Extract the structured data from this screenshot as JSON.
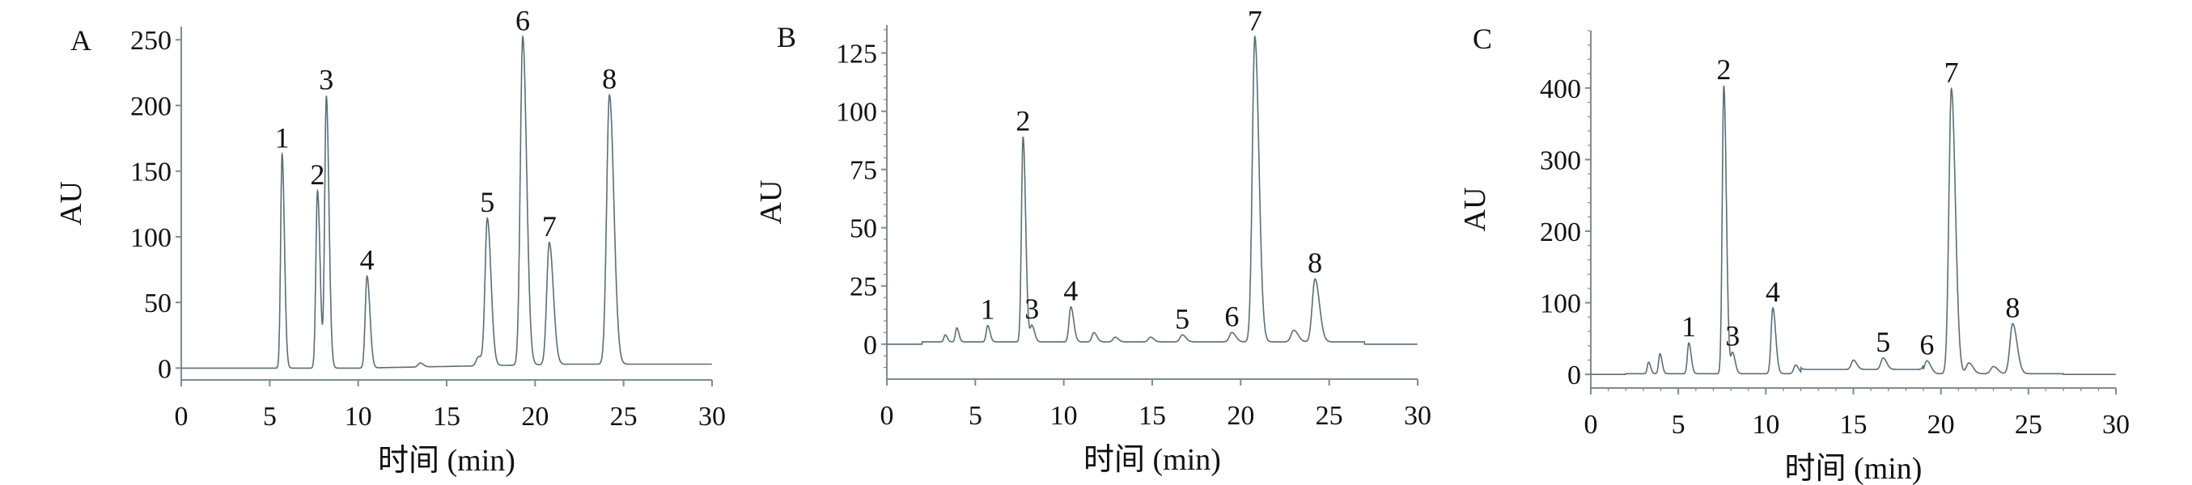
{
  "chart_data": [
    {
      "type": "line",
      "panel_label": "A",
      "xlabel": "时间 (min)",
      "ylabel": "AU",
      "xlim": [
        0,
        30
      ],
      "ylim": [
        -9,
        260
      ],
      "xticks": [
        "0",
        "5",
        "10",
        "15",
        "20",
        "25",
        "30"
      ],
      "yticks": [
        "0",
        "50",
        "100",
        "150",
        "200",
        "250"
      ],
      "line_color": "#5b6e77",
      "peaks": [
        {
          "label": "1",
          "x": 5.7,
          "y": 163
        },
        {
          "label": "2",
          "x": 7.7,
          "y": 135
        },
        {
          "label": "3",
          "x": 8.2,
          "y": 207
        },
        {
          "label": "4",
          "x": 10.5,
          "y": 70
        },
        {
          "label": "5",
          "x": 17.3,
          "y": 112
        },
        {
          "label": "6",
          "x": 19.3,
          "y": 250
        },
        {
          "label": "7",
          "x": 20.8,
          "y": 93
        },
        {
          "label": "8",
          "x": 24.2,
          "y": 205
        }
      ],
      "minor_peaks": [
        {
          "x": 13.5,
          "y": 3
        },
        {
          "x": 16.8,
          "y": 7
        }
      ]
    },
    {
      "type": "line",
      "panel_label": "B",
      "xlabel": "时间 (min)",
      "ylabel": "AU",
      "xlim": [
        0,
        30
      ],
      "ylim": [
        -15,
        137
      ],
      "xticks": [
        "0",
        "5",
        "10",
        "15",
        "20",
        "25",
        "30"
      ],
      "yticks": [
        "0",
        "25",
        "50",
        "75",
        "100",
        "125"
      ],
      "line_color": "#5b6e77",
      "peaks": [
        {
          "label": "1",
          "x": 5.7,
          "y": 7
        },
        {
          "label": "2",
          "x": 7.7,
          "y": 88
        },
        {
          "label": "3",
          "x": 8.2,
          "y": 7
        },
        {
          "label": "4",
          "x": 10.4,
          "y": 15
        },
        {
          "label": "5",
          "x": 16.7,
          "y": 3
        },
        {
          "label": "6",
          "x": 19.5,
          "y": 4
        },
        {
          "label": "7",
          "x": 20.8,
          "y": 131
        },
        {
          "label": "8",
          "x": 24.2,
          "y": 27
        }
      ],
      "minor_peaks": [
        {
          "x": 3.3,
          "y": 3
        },
        {
          "x": 3.95,
          "y": 6
        },
        {
          "x": 11.7,
          "y": 4
        },
        {
          "x": 12.9,
          "y": 2
        },
        {
          "x": 14.9,
          "y": 2
        },
        {
          "x": 23.0,
          "y": 5
        }
      ]
    },
    {
      "type": "line",
      "panel_label": "C",
      "xlabel": "时间 (min)",
      "ylabel": "AU",
      "xlim": [
        0,
        30
      ],
      "ylim": [
        -19,
        480
      ],
      "xticks": [
        "0",
        "5",
        "10",
        "15",
        "20",
        "25",
        "30"
      ],
      "yticks": [
        "0",
        "100",
        "200",
        "300",
        "400"
      ],
      "line_color": "#5b6e77",
      "peaks": [
        {
          "label": "1",
          "x": 5.6,
          "y": 43
        },
        {
          "label": "2",
          "x": 7.6,
          "y": 402
        },
        {
          "label": "3",
          "x": 8.1,
          "y": 29
        },
        {
          "label": "4",
          "x": 10.4,
          "y": 92
        },
        {
          "label": "5",
          "x": 16.7,
          "y": 16
        },
        {
          "label": "6",
          "x": 19.2,
          "y": 18
        },
        {
          "label": "7",
          "x": 20.6,
          "y": 398
        },
        {
          "label": "8",
          "x": 24.1,
          "y": 70
        }
      ],
      "minor_peaks": [
        {
          "x": 3.3,
          "y": 16
        },
        {
          "x": 3.95,
          "y": 28
        },
        {
          "x": 11.7,
          "y": 12
        },
        {
          "x": 15.0,
          "y": 13
        },
        {
          "x": 21.6,
          "y": 15
        },
        {
          "x": 23.0,
          "y": 10
        }
      ]
    }
  ]
}
